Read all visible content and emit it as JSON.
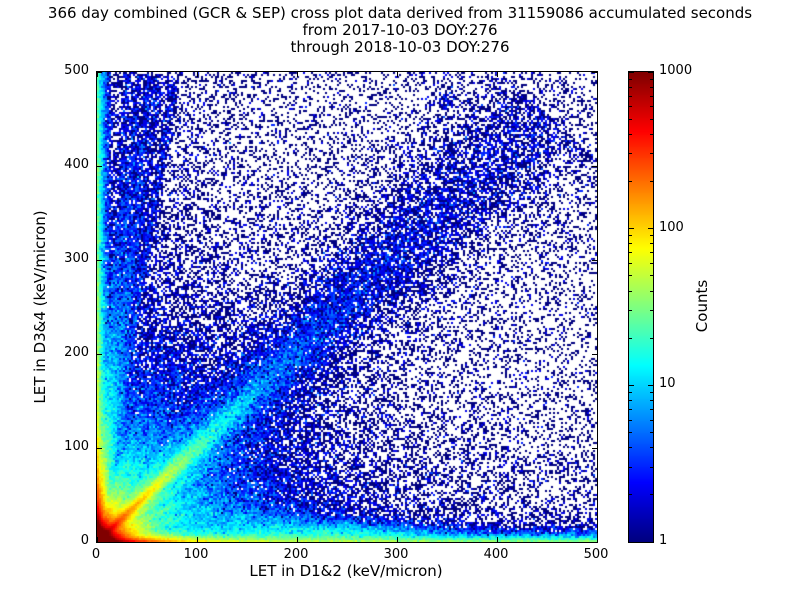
{
  "figure": {
    "title_lines": [
      "366 day combined (GCR & SEP) cross plot data derived from 31159086 accumulated seconds",
      "from 2017-10-03 DOY:276",
      "through 2018-10-03 DOY:276"
    ],
    "background": "#ffffff"
  },
  "colors": {
    "axis": "#000000",
    "text": "#000000",
    "background": "#ffffff",
    "cmap_low": "#000080",
    "cmap_high": "#800000"
  },
  "chart_data": {
    "type": "heatmap",
    "title": "366 day combined (GCR & SEP) cross plot data derived from 31159086 accumulated seconds",
    "subtitle": [
      "from 2017-10-03 DOY:276",
      "through 2018-10-03 DOY:276"
    ],
    "xlabel": "LET in D1&2 (keV/micron)",
    "ylabel": "LET in D3&4 (keV/micron)",
    "xlim": [
      0,
      500
    ],
    "ylim": [
      0,
      500
    ],
    "xticks": [
      0,
      100,
      200,
      300,
      400,
      500
    ],
    "yticks": [
      0,
      100,
      200,
      300,
      400,
      500
    ],
    "grid": false,
    "bin_size_kev_per_micron": 2,
    "colorbar": {
      "label": "Counts",
      "scale": "log10",
      "range": [
        1,
        1000
      ],
      "ticks": [
        1000,
        100,
        10,
        1
      ],
      "tick_labels": [
        "1000",
        "100",
        "10",
        "1"
      ],
      "minor_ticks_per_decade": [
        2,
        3,
        4,
        5,
        6,
        7,
        8,
        9
      ],
      "colormap": "jet",
      "position": "right"
    },
    "features": [
      "saturated red/orange hot spot (counts ~1000) at the origin below ~15 keV/micron in both detectors",
      "bright diagonal correlation band y ~= x extending from the origin to about (320,330), sparse out to ~450",
      "fan of yellow/green rays leaving the origin at slopes ~0.3 to ~3, visible to ~70 keV/micron",
      "near-vertical streaks reaching x ~= 30, 40, 50, 60, 75 at the top of the plot",
      "dense cyan band along the x-axis (y < 10) extending to x ~= 500",
      "dense cyan/green column along the y-axis (x < 10) up to y ~= 300",
      "sparse single-count dark blue speckle over the whole plane, denser toward low LET"
    ],
    "density_model": {
      "seed": 42,
      "total_points_approx": 430000,
      "components": [
        {
          "type": "exp2d",
          "n": 130000,
          "mx": 4.5,
          "my": 4.5,
          "note": "saturated hot spot at origin"
        },
        {
          "type": "exp2d",
          "n": 60000,
          "mx": 12,
          "my": 12,
          "note": "yellow-green halo around origin"
        },
        {
          "type": "exp2d",
          "n": 45000,
          "mx": 80,
          "my": 80,
          "note": "blue wedge fill at low LET"
        },
        {
          "type": "exp2d",
          "n": 22000,
          "mx": 28,
          "my": 3,
          "note": "bright lobe along x-axis"
        },
        {
          "type": "exp2d",
          "n": 20000,
          "mx": 3,
          "my": 28,
          "note": "bright lobe along y-axis"
        },
        {
          "type": "edge",
          "axis": "left",
          "n": 27000,
          "m": 4,
          "pow": 1.9,
          "note": "dense column at x~0"
        },
        {
          "type": "edge",
          "axis": "bottom",
          "n": 26000,
          "m": 4,
          "pow": 1.4,
          "note": "dense band at y~0"
        },
        {
          "type": "gauss",
          "n": 6000,
          "cx": 235,
          "cy": 10,
          "sx": 60,
          "sy": 7
        },
        {
          "type": "gauss",
          "n": 2500,
          "cx": 150,
          "cy": 22,
          "sx": 45,
          "sy": 10
        },
        {
          "type": "ray",
          "n": 30000,
          "slope": 1.0,
          "rmean": 70,
          "s0": 1.2,
          "sk": 0.035,
          "note": "bright core of y=x band"
        },
        {
          "type": "ray",
          "n": 18000,
          "slope": 1.03,
          "rmax": 640,
          "rpow": 1.7,
          "s0": 2,
          "sk": 0.055,
          "note": "main diagonal band"
        },
        {
          "type": "ray",
          "n": 8000,
          "slope": 1.0,
          "rmax": 680,
          "rpow": 1.2,
          "s0": 8,
          "sk": 0.12,
          "note": "fuzzy halo around diagonal"
        },
        {
          "type": "ray",
          "n": 6000,
          "slope": 0.72,
          "rmean": 60,
          "s0": 1,
          "sk": 0.03
        },
        {
          "type": "ray",
          "n": 5000,
          "slope": 0.5,
          "rmean": 50,
          "s0": 1,
          "sk": 0.03
        },
        {
          "type": "ray",
          "n": 4000,
          "slope": 0.32,
          "rmean": 45,
          "s0": 1,
          "sk": 0.03
        },
        {
          "type": "ray",
          "n": 5000,
          "slope": 1.4,
          "rmean": 55,
          "s0": 1,
          "sk": 0.03
        },
        {
          "type": "ray",
          "n": 4500,
          "slope": 2.0,
          "rmean": 50,
          "s0": 1,
          "sk": 0.03
        },
        {
          "type": "ray",
          "n": 4000,
          "slope": 2.9,
          "rmean": 45,
          "s0": 1,
          "sk": 0.03
        },
        {
          "type": "ray",
          "n": 2600,
          "slope": 15.5,
          "rmax": 500,
          "rpow": 2.0,
          "s0": 1.2,
          "sk": 0.004,
          "note": "streak to x~30"
        },
        {
          "type": "ray",
          "n": 3000,
          "slope": 11.8,
          "rmax": 500,
          "rpow": 2.0,
          "s0": 1.2,
          "sk": 0.004,
          "note": "streak to x~40"
        },
        {
          "type": "ray",
          "n": 2800,
          "slope": 9.4,
          "rmax": 500,
          "rpow": 2.0,
          "s0": 1.2,
          "sk": 0.004,
          "note": "streak to x~50"
        },
        {
          "type": "ray",
          "n": 2400,
          "slope": 7.8,
          "rmax": 500,
          "rpow": 2.0,
          "s0": 1.3,
          "sk": 0.004,
          "note": "streak to x~60"
        },
        {
          "type": "ray",
          "n": 2200,
          "slope": 6.3,
          "rmax": 500,
          "rpow": 2.0,
          "s0": 1.3,
          "sk": 0.004,
          "note": "streak to x~75"
        },
        {
          "type": "uniform",
          "n": 9000
        },
        {
          "type": "edge",
          "axis": "left",
          "n": 6000,
          "m": 140,
          "pow": 1.0
        },
        {
          "type": "edge",
          "axis": "bottom",
          "n": 5000,
          "m": 140,
          "pow": 1.0
        },
        {
          "type": "gauss",
          "n": 60,
          "cx": 347,
          "cy": 472,
          "sx": 5,
          "sy": 8
        }
      ]
    }
  }
}
